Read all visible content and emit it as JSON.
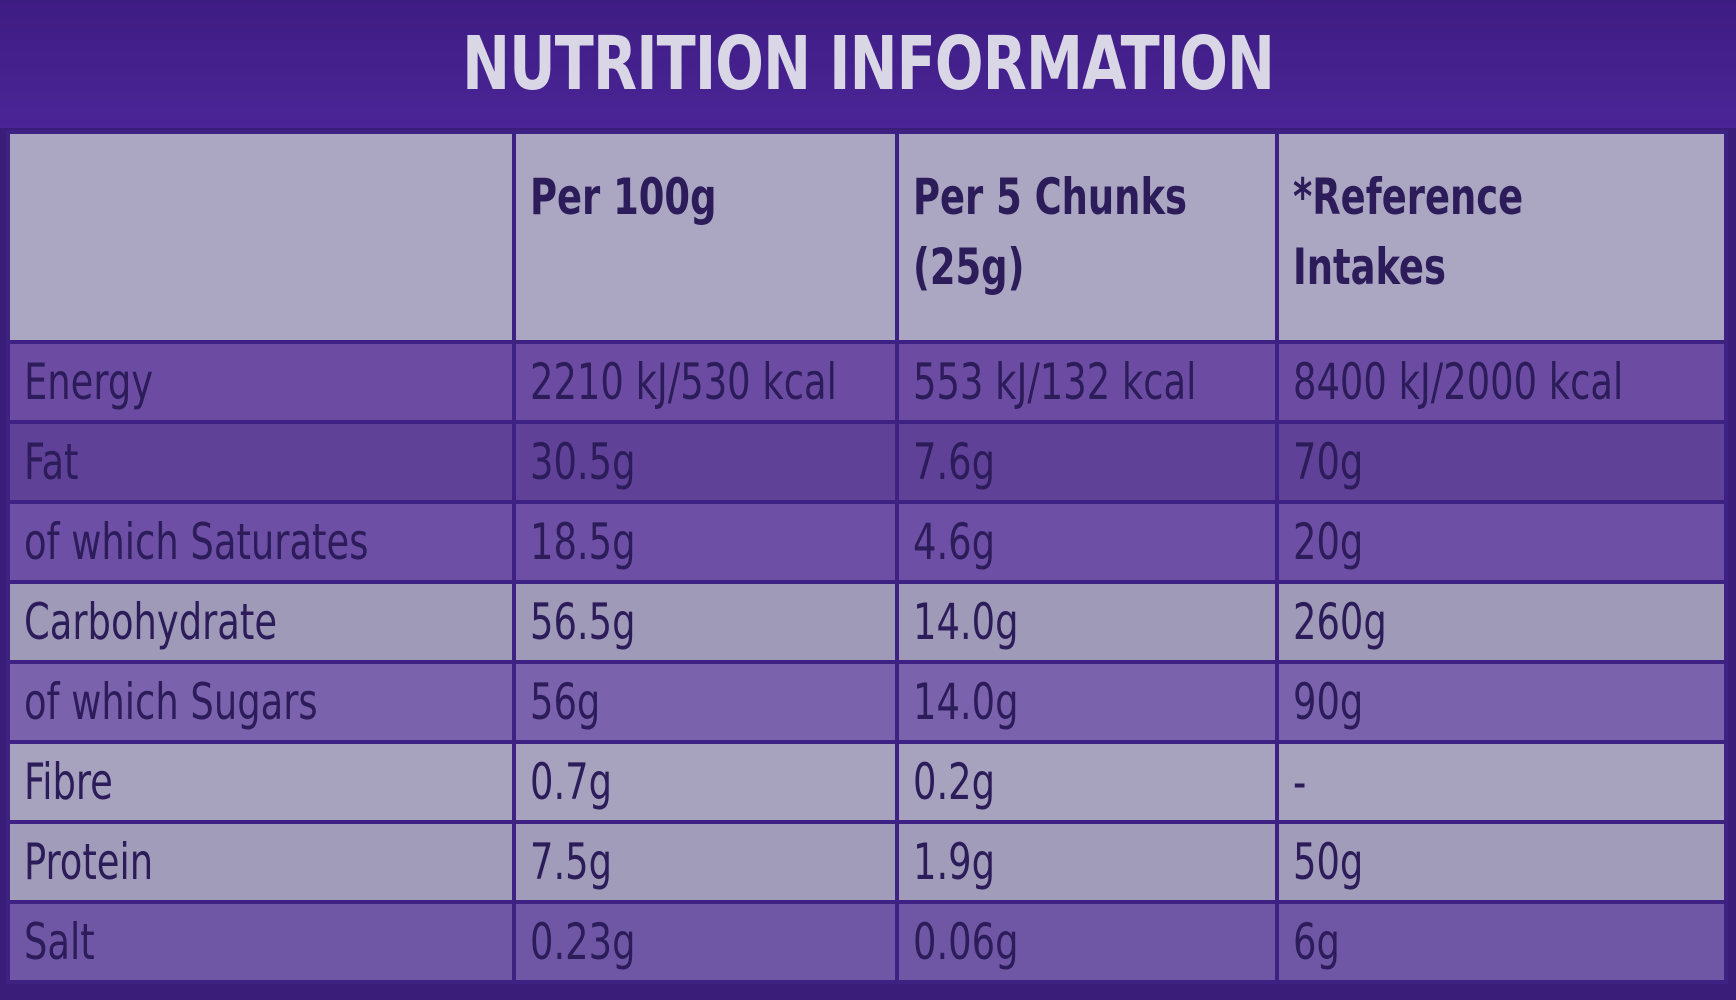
{
  "title": "NUTRITION INFORMATION",
  "headers": [
    "",
    "Per 100g",
    "Per 5 Chunks (25g)",
    "*Reference Intakes"
  ],
  "rows": [
    [
      "Energy",
      "2210 kJ/530 kcal",
      "553 kJ/132 kcal",
      "8400 kJ/2000 kcal"
    ],
    [
      "Fat",
      "30.5g",
      "7.6g",
      "70g"
    ],
    [
      "of which Saturates",
      "18.5g",
      "4.6g",
      "20g"
    ],
    [
      "Carbohydrate",
      "56.5g",
      "14.0g",
      "260g"
    ],
    [
      "of which Sugars",
      "56g",
      "14.0g",
      "90g"
    ],
    [
      "Fibre",
      "0.7g",
      "0.2g",
      "-"
    ],
    [
      "Protein",
      "7.5g",
      "1.9g",
      "50g"
    ],
    [
      "Salt",
      "0.23g",
      "0.06g",
      "6g"
    ]
  ],
  "colors": {
    "band": "#4b2597",
    "header": "#aba6c2",
    "text": "#2c1c5a"
  }
}
